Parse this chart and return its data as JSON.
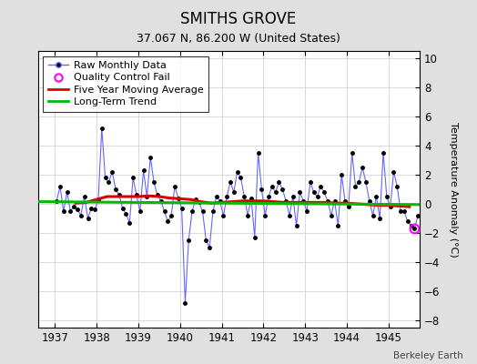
{
  "title": "SMITHS GROVE",
  "subtitle": "37.067 N, 86.200 W (United States)",
  "ylabel": "Temperature Anomaly (°C)",
  "credit": "Berkeley Earth",
  "xlim": [
    1936.6,
    1945.75
  ],
  "ylim": [
    -8.5,
    10.5
  ],
  "yticks": [
    -8,
    -6,
    -4,
    -2,
    0,
    2,
    4,
    6,
    8,
    10
  ],
  "xticks": [
    1937,
    1938,
    1939,
    1940,
    1941,
    1942,
    1943,
    1944,
    1945
  ],
  "bg_color": "#e0e0e0",
  "plot_bg_color": "#ffffff",
  "raw_data_x": [
    1937.042,
    1937.125,
    1937.208,
    1937.292,
    1937.375,
    1937.458,
    1937.542,
    1937.625,
    1937.708,
    1937.792,
    1937.875,
    1937.958,
    1938.042,
    1938.125,
    1938.208,
    1938.292,
    1938.375,
    1938.458,
    1938.542,
    1938.625,
    1938.708,
    1938.792,
    1938.875,
    1938.958,
    1939.042,
    1939.125,
    1939.208,
    1939.292,
    1939.375,
    1939.458,
    1939.542,
    1939.625,
    1939.708,
    1939.792,
    1939.875,
    1939.958,
    1940.042,
    1940.125,
    1940.208,
    1940.292,
    1940.375,
    1940.458,
    1940.542,
    1940.625,
    1940.708,
    1940.792,
    1940.875,
    1940.958,
    1941.042,
    1941.125,
    1941.208,
    1941.292,
    1941.375,
    1941.458,
    1941.542,
    1941.625,
    1941.708,
    1941.792,
    1941.875,
    1941.958,
    1942.042,
    1942.125,
    1942.208,
    1942.292,
    1942.375,
    1942.458,
    1942.542,
    1942.625,
    1942.708,
    1942.792,
    1942.875,
    1942.958,
    1943.042,
    1943.125,
    1943.208,
    1943.292,
    1943.375,
    1943.458,
    1943.542,
    1943.625,
    1943.708,
    1943.792,
    1943.875,
    1943.958,
    1944.042,
    1944.125,
    1944.208,
    1944.292,
    1944.375,
    1944.458,
    1944.542,
    1944.625,
    1944.708,
    1944.792,
    1944.875,
    1944.958,
    1945.042,
    1945.125,
    1945.208,
    1945.292,
    1945.375,
    1945.458,
    1945.542,
    1945.625,
    1945.708
  ],
  "raw_data_y": [
    0.2,
    1.2,
    -0.5,
    0.8,
    -0.5,
    -0.2,
    -0.4,
    -0.8,
    0.5,
    -1.0,
    -0.3,
    -0.4,
    0.3,
    5.2,
    1.8,
    1.5,
    2.2,
    1.0,
    0.6,
    -0.3,
    -0.7,
    -1.3,
    1.8,
    0.6,
    -0.5,
    2.3,
    0.5,
    3.2,
    1.5,
    0.6,
    0.2,
    -0.5,
    -1.2,
    -0.8,
    1.2,
    0.4,
    -0.3,
    -6.8,
    -2.5,
    -0.5,
    0.3,
    0.1,
    -0.5,
    -2.5,
    -3.0,
    -0.5,
    0.5,
    0.2,
    -0.8,
    0.5,
    1.5,
    0.8,
    2.2,
    1.8,
    0.5,
    -0.8,
    0.4,
    -2.3,
    3.5,
    1.0,
    -0.8,
    0.5,
    1.2,
    0.8,
    1.5,
    1.0,
    0.2,
    -0.8,
    0.5,
    -1.5,
    0.8,
    0.2,
    -0.5,
    1.5,
    0.8,
    0.5,
    1.2,
    0.8,
    0.2,
    -0.8,
    0.2,
    -1.5,
    2.0,
    0.2,
    -0.2,
    3.5,
    1.2,
    1.5,
    2.5,
    1.5,
    0.2,
    -0.8,
    0.5,
    -1.0,
    3.5,
    0.5,
    -0.2,
    2.2,
    1.2,
    -0.5,
    -0.5,
    -1.2,
    -1.5,
    -1.7,
    -0.8
  ],
  "qc_fail_x": [
    1945.625
  ],
  "qc_fail_y": [
    -1.7
  ],
  "moving_avg_x": [
    1937.5,
    1937.75,
    1938.0,
    1938.25,
    1938.5,
    1938.75,
    1939.0,
    1939.25,
    1939.5,
    1939.75,
    1940.0,
    1940.25,
    1940.5,
    1940.75,
    1941.0,
    1941.25,
    1941.5,
    1941.75,
    1942.0,
    1942.25,
    1942.5,
    1942.75,
    1943.0,
    1943.25,
    1943.5,
    1943.75,
    1944.0,
    1944.25,
    1944.5,
    1944.75,
    1945.0,
    1945.25,
    1945.5
  ],
  "moving_avg_y": [
    0.05,
    0.1,
    0.3,
    0.5,
    0.5,
    0.5,
    0.5,
    0.55,
    0.5,
    0.4,
    0.35,
    0.3,
    0.15,
    0.05,
    0.1,
    0.15,
    0.2,
    0.2,
    0.2,
    0.15,
    0.1,
    0.1,
    0.1,
    0.1,
    0.1,
    0.05,
    0.05,
    0.0,
    -0.05,
    -0.1,
    -0.1,
    -0.15,
    -0.2
  ],
  "trend_x": [
    1936.6,
    1945.75
  ],
  "trend_y": [
    0.15,
    -0.05
  ],
  "raw_line_color": "#6666ff",
  "marker_color": "#000000",
  "qc_color": "#ff00ff",
  "moving_avg_color": "#dd0000",
  "trend_color": "#00bb00",
  "title_fontsize": 12,
  "subtitle_fontsize": 9,
  "label_fontsize": 8,
  "tick_fontsize": 8.5,
  "legend_fontsize": 8
}
